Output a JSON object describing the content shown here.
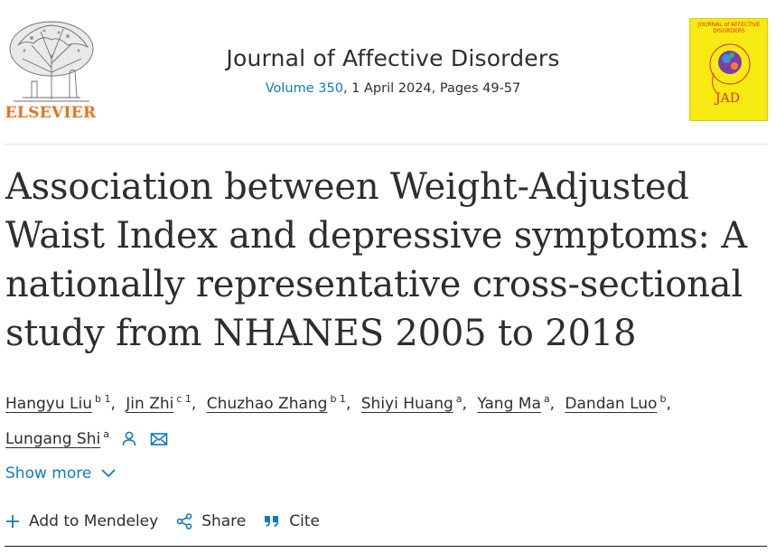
{
  "publisher": {
    "name": "ELSEVIER",
    "logo_icon": "elsevier-tree-logo"
  },
  "journal": {
    "title": "Journal of Affective Disorders",
    "volume_link": "Volume 350",
    "issue_rest": ", 1 April 2024, Pages 49-57"
  },
  "cover": {
    "title": "JOURNAL of AFFECTIVE DISORDERS",
    "abbrev": "JAD",
    "bg_color": "#f7ea11"
  },
  "article": {
    "title": "Association between Weight-Adjusted Waist Index and depressive symptoms: A nationally representative cross-sectional study from NHANES 2005 to 2018"
  },
  "authors": [
    {
      "name": "Hangyu Liu",
      "aff": "b 1"
    },
    {
      "name": "Jin Zhi",
      "aff": "c 1"
    },
    {
      "name": "Chuzhao Zhang",
      "aff": "b 1"
    },
    {
      "name": "Shiyi Huang",
      "aff": "a"
    },
    {
      "name": "Yang Ma",
      "aff": "a"
    },
    {
      "name": "Dandan Luo",
      "aff": "b"
    },
    {
      "name": "Lungang Shi",
      "aff": "a"
    }
  ],
  "show_more": {
    "label": "Show more"
  },
  "actions": {
    "mendeley": "Add to Mendeley",
    "share": "Share",
    "cite": "Cite"
  },
  "colors": {
    "link": "#0c7dbb",
    "publisher_orange": "#e9711c"
  }
}
